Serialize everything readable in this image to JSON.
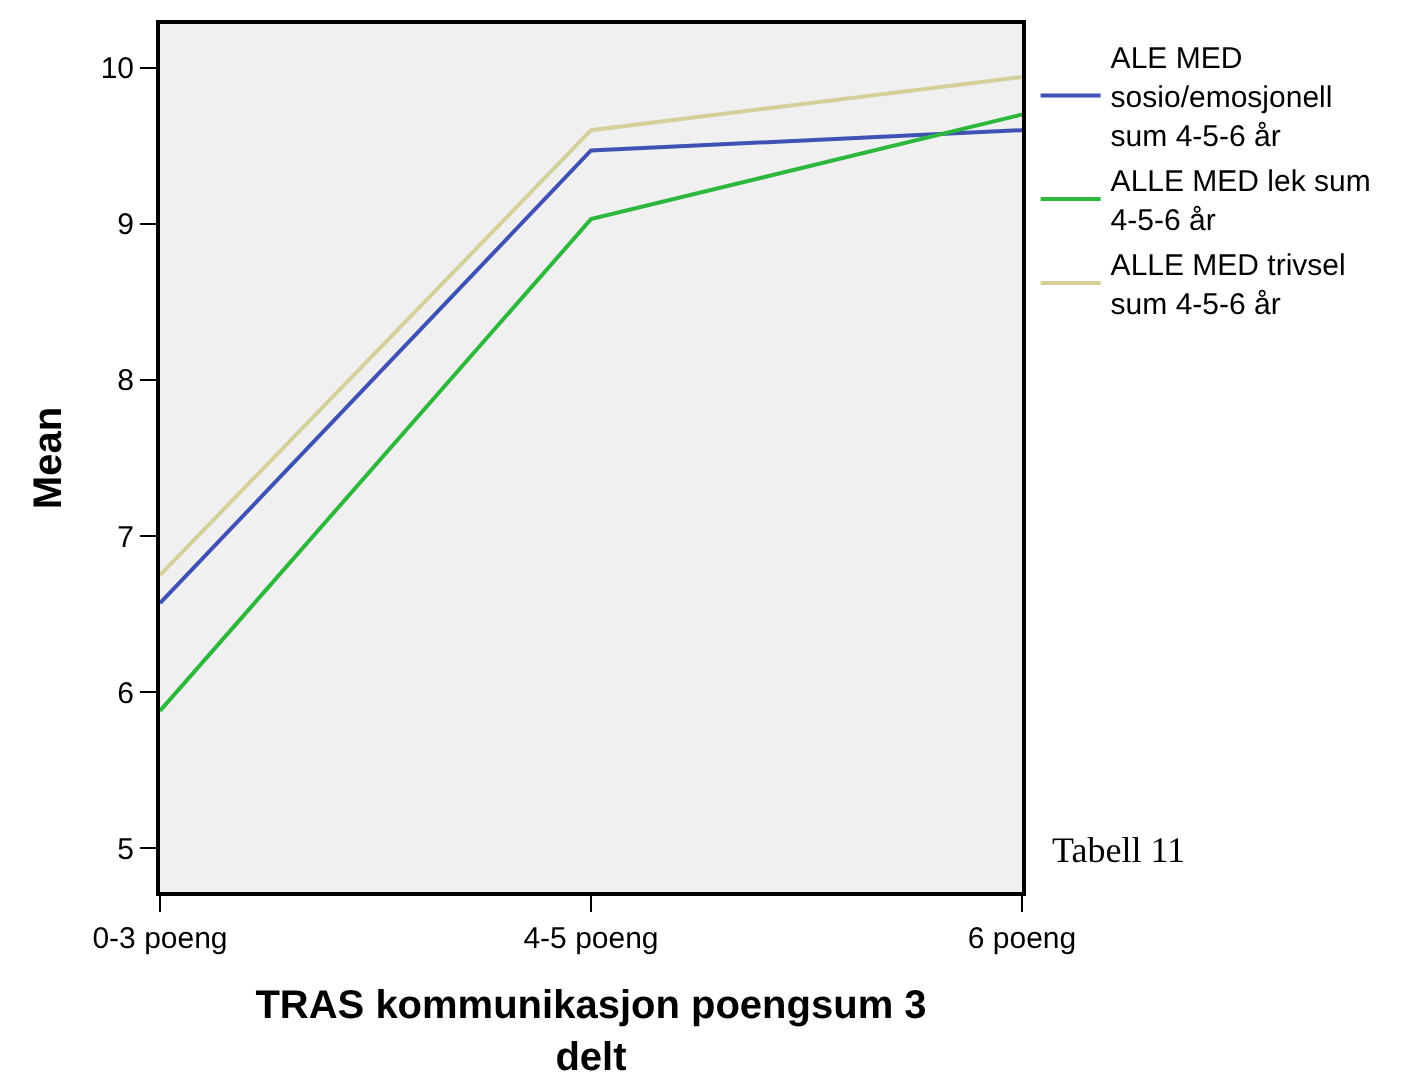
{
  "chart_data": {
    "type": "line",
    "xlabel": "TRAS kommunikasjon poengsum 3 delt",
    "ylabel": "Mean",
    "categories": [
      "0-3 poeng",
      "4-5 poeng",
      "6 poeng"
    ],
    "series": [
      {
        "name": "ALE MED sosio/emosjonell sum 4-5-6 år",
        "color": "#3f51b5",
        "values": [
          6.57,
          9.47,
          9.6
        ]
      },
      {
        "name": "ALLE MED lek sum 4-5-6 år",
        "color": "#2db83d",
        "values": [
          5.88,
          9.03,
          9.7
        ]
      },
      {
        "name": "ALLE MED trivsel sum 4-5-6 år",
        "color": "#d5cf9a",
        "values": [
          6.75,
          9.6,
          9.94
        ]
      }
    ],
    "ylim": [
      4.72,
      10.28
    ],
    "yticks": [
      5,
      6,
      7,
      8,
      9,
      10
    ],
    "grid": false,
    "legend": "top right",
    "marker": "none",
    "line_style": "solid",
    "annotations": [
      "Tabell 11"
    ]
  }
}
